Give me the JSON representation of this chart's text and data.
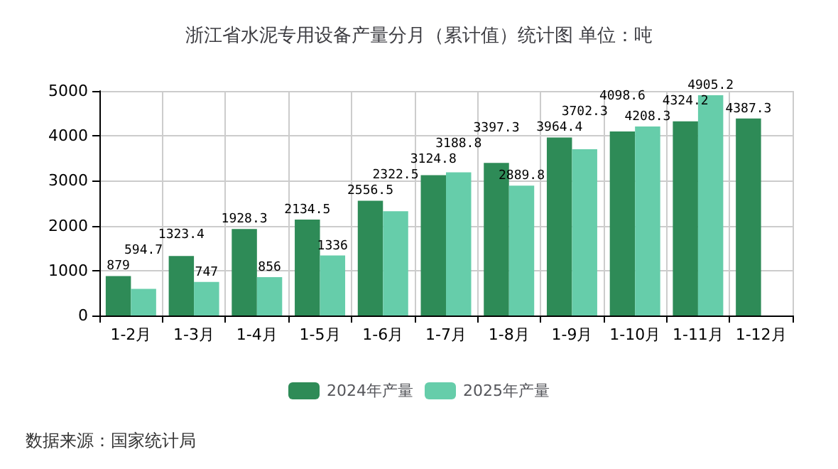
{
  "chart_data": {
    "type": "bar",
    "title": "浙江省水泥专用设备产量分月（累计值）统计图 单位：吨",
    "categories": [
      "1-2月",
      "1-3月",
      "1-4月",
      "1-5月",
      "1-6月",
      "1-7月",
      "1-8月",
      "1-9月",
      "1-10月",
      "1-11月",
      "1-12月"
    ],
    "series": [
      {
        "name": "2024年产量",
        "color": "#2e8b57",
        "values": [
          879,
          1323.4,
          1928.3,
          2134.5,
          2556.5,
          3124.8,
          3397.3,
          3964.4,
          4098.6,
          4324.2,
          4387.3
        ]
      },
      {
        "name": "2025年产量",
        "color": "#66cdaa",
        "values": [
          594.7,
          747,
          856,
          1336,
          2322.5,
          3188.8,
          2889.8,
          3702.3,
          4208.3,
          4905.2,
          null
        ]
      }
    ],
    "ylim": [
      0,
      5000
    ],
    "yticks": [
      0,
      1000,
      2000,
      3000,
      4000,
      5000
    ],
    "grid": true,
    "legend": "bottom",
    "data_labels": true,
    "annotations": [
      "数据来源：国家统计局"
    ]
  }
}
